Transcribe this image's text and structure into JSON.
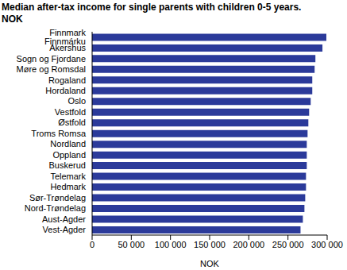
{
  "chart_data": {
    "type": "bar",
    "title": "Median after-tax income for single parents with children 0-5 years. NOK",
    "orientation": "horizontal",
    "categories": [
      "Finnmark Finnmárku",
      "Akershus",
      "Sogn og Fjordane",
      "Møre og Romsdal",
      "Rogaland",
      "Hordaland",
      "Oslo",
      "Vestfold",
      "Østfold",
      "Troms Romsa",
      "Nordland",
      "Oppland",
      "Buskerud",
      "Telemark",
      "Hedmark",
      "Sør-Trøndelag",
      "Nord-Trøndelag",
      "Aust-Agder",
      "Vest-Agder"
    ],
    "values": [
      299000,
      294000,
      285000,
      284000,
      281000,
      281000,
      279000,
      277000,
      276000,
      275000,
      274000,
      274000,
      274000,
      273000,
      273000,
      272000,
      271000,
      269000,
      266000
    ],
    "color": "#2b3a9a",
    "xlabel": "NOK",
    "xlim": [
      0,
      300000
    ],
    "xticks": [
      0,
      {
        "value": 50000,
        "label": "50 000"
      },
      {
        "value": 100000,
        "label": "100 000"
      },
      {
        "value": 150000,
        "label": "150 000"
      },
      {
        "value": 200000,
        "label": "200 000"
      },
      {
        "value": 250000,
        "label": "250 000"
      },
      {
        "value": 300000,
        "label": "300 000"
      }
    ],
    "grid": false
  }
}
